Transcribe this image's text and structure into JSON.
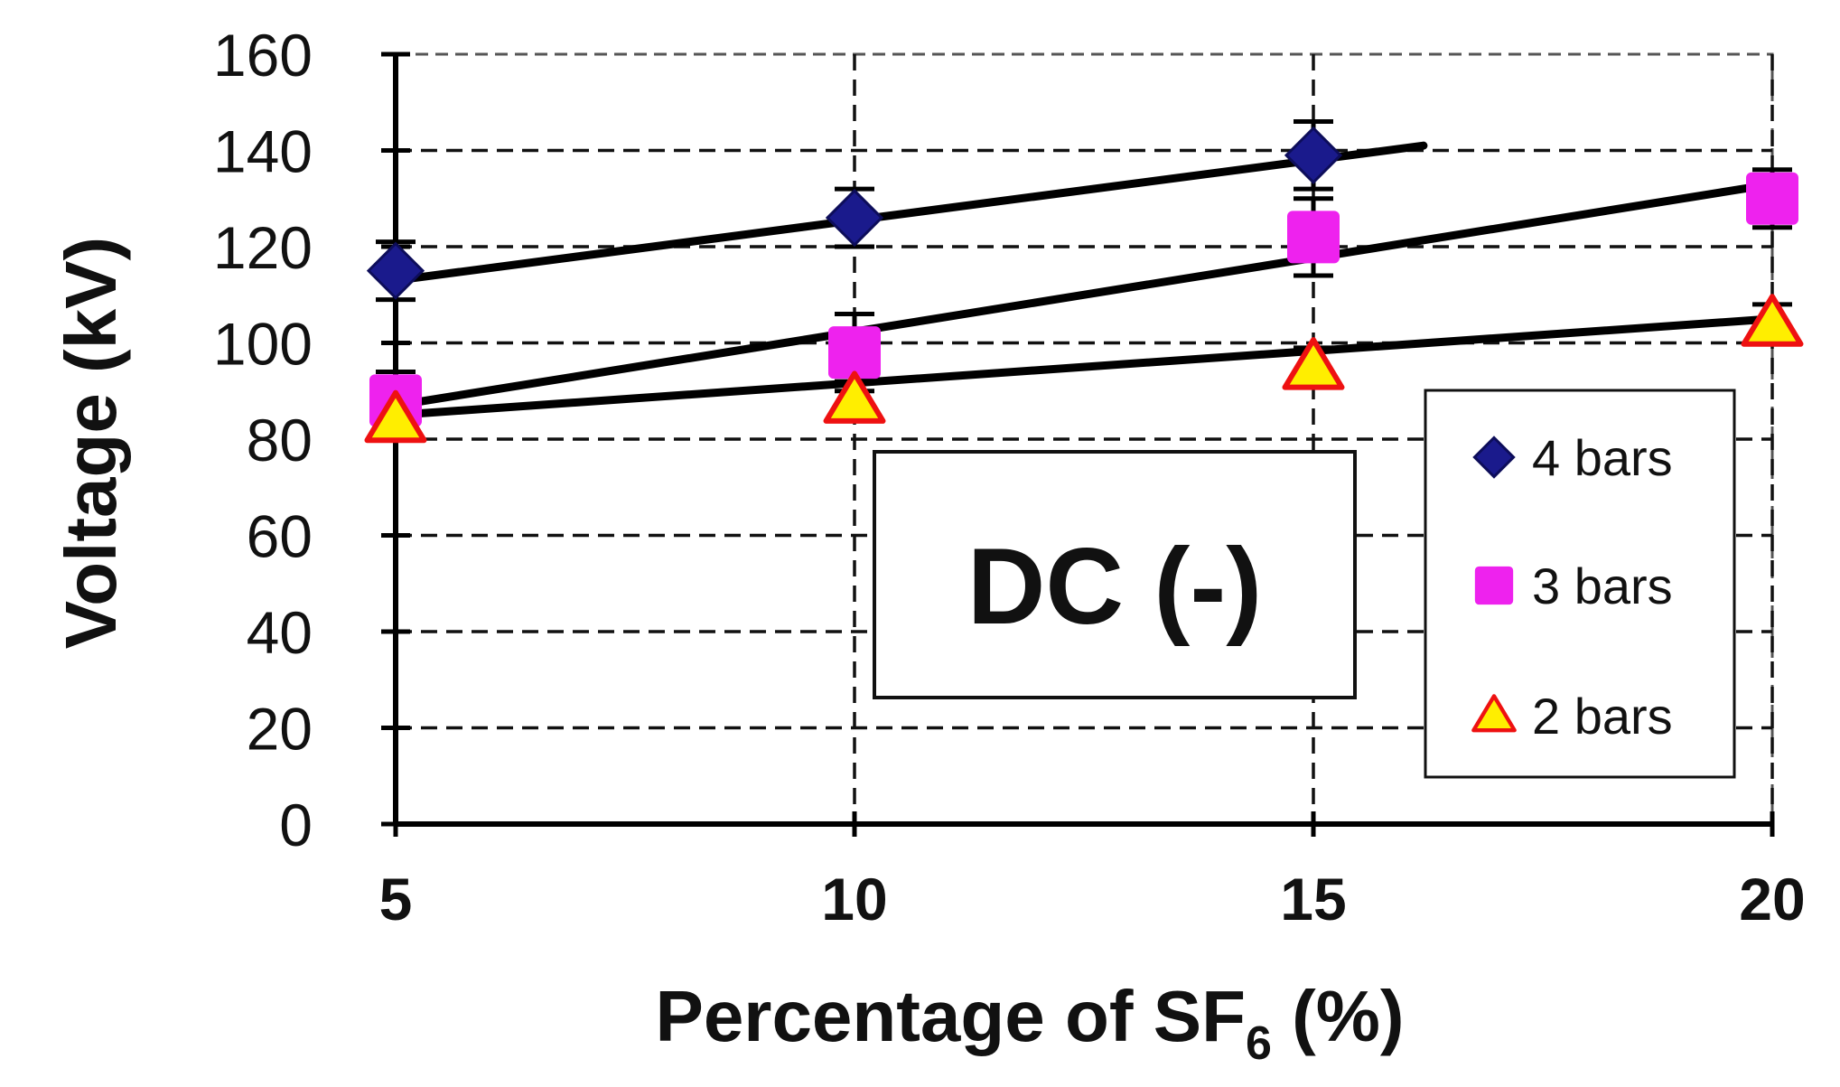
{
  "chart_data": {
    "type": "line",
    "title": "",
    "xlabel_main": "Percentage of SF",
    "xlabel_sub": "6",
    "xlabel_tail": " (%)",
    "ylabel": "Voltage (kV)",
    "x": [
      5,
      10,
      15,
      20
    ],
    "xlim": [
      5,
      20
    ],
    "ylim": [
      0,
      160
    ],
    "xticks": [
      5,
      10,
      15,
      20
    ],
    "yticks": [
      0,
      20,
      40,
      60,
      80,
      100,
      120,
      140,
      160
    ],
    "grid": true,
    "legend_position": "lower-right",
    "annotation": "DC (-)",
    "series": [
      {
        "name": "4 bars",
        "marker": "diamond",
        "color": "#1a1a8c",
        "values": [
          115,
          126,
          139,
          null
        ],
        "errors": [
          6,
          6,
          7,
          null
        ],
        "fit": [
          [
            5,
            113
          ],
          [
            16.2,
            141
          ]
        ]
      },
      {
        "name": "3 bars",
        "marker": "square",
        "color": "#ee22ee",
        "values": [
          88,
          98,
          122,
          130
        ],
        "errors": [
          6,
          8,
          8,
          6
        ],
        "fit": [
          [
            5,
            87
          ],
          [
            20,
            133
          ]
        ]
      },
      {
        "name": "2 bars",
        "marker": "triangle",
        "color": "#ffee00",
        "edge_color": "#ee1111",
        "values": [
          84,
          88,
          95,
          104
        ],
        "errors": [
          4,
          4,
          4,
          4
        ],
        "fit": [
          [
            5,
            85
          ],
          [
            20,
            105
          ]
        ]
      }
    ]
  }
}
